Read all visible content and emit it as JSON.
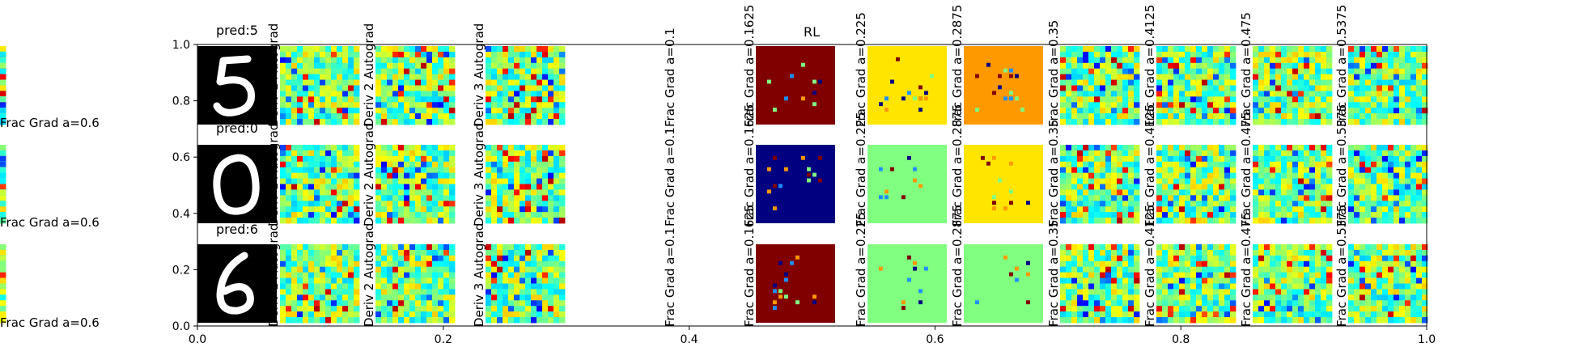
{
  "chart_data": {
    "type": "heatmap",
    "xlim": [
      0.0,
      1.0
    ],
    "ylim": [
      0.0,
      1.0
    ],
    "x_ticks": [
      0.0,
      0.2,
      0.4,
      0.6,
      0.8,
      1.0
    ],
    "x_tick_labels": [
      "0.0",
      "0.2",
      "0.4",
      "0.6",
      "0.8",
      "1.0"
    ],
    "y_ticks": [
      0.0,
      0.2,
      0.4,
      0.6,
      0.8,
      1.0
    ],
    "y_tick_labels": [
      "0.0",
      "0.2",
      "0.4",
      "0.6",
      "0.8",
      "1.0"
    ],
    "grid": false,
    "colormap": "jet",
    "center_title": "RL",
    "row_titles": [
      "pred:5",
      "pred:0",
      "pred:6"
    ],
    "column_labels": [
      "Deriv 1 Autograd",
      "Deriv 2 Autograd",
      "Deriv 3 Autograd",
      "Frac Grad a=0.1",
      "Frac Grad a=0.1625",
      "Frac Grad a=0.225",
      "Frac Grad a=0.2875",
      "Frac Grad a=0.35",
      "Frac Grad a=0.4125",
      "Frac Grad a=0.475",
      "Frac Grad a=0.5375",
      "Frac Grad a=0.6"
    ],
    "panel_styles": {
      "deriv": "mixed",
      "frac_low": "dominant",
      "frac_high": "mixed"
    },
    "panel_base_colors": [
      [
        "#800000",
        "#ffe500",
        "#ff9900"
      ],
      [
        "#000080",
        "#80ff80",
        "#ffe500"
      ],
      [
        "#800000",
        "#80ff80",
        "#80ff80"
      ]
    ]
  }
}
